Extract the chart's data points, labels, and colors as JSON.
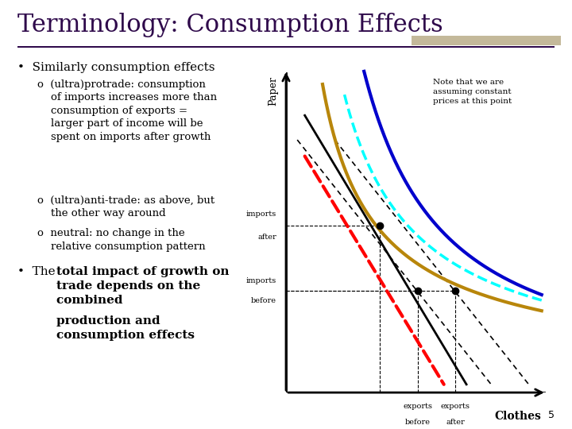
{
  "title": "Terminology: Consumption Effects",
  "title_color": "#2F0A4B",
  "title_fontsize": 22,
  "bg_color": "#FFFFFF",
  "slide_number": "5",
  "bullet1": "Similarly consumption effects",
  "sub1": "(ultra)protrade: consumption\nof imports increases more than\nconsumption of exports =\nlarger part of income will be\nspent on imports after growth",
  "sub2": "(ultra)anti-trade: as above, but\nthe other way around",
  "sub3": "neutral: no change in the\nrelative consumption pattern",
  "bullet2_pre": "The ",
  "bullet2_bold": "total impact of growth on\ntrade depends on the\ncombined production and\nconsumption effects",
  "note_text": "Note that we are\nassuming constant\nprices at this point",
  "xlabel": "Clothes",
  "ylabel": "Paper",
  "deco_bar_color": "#C4B99A",
  "line_color": "#2F0A4B"
}
